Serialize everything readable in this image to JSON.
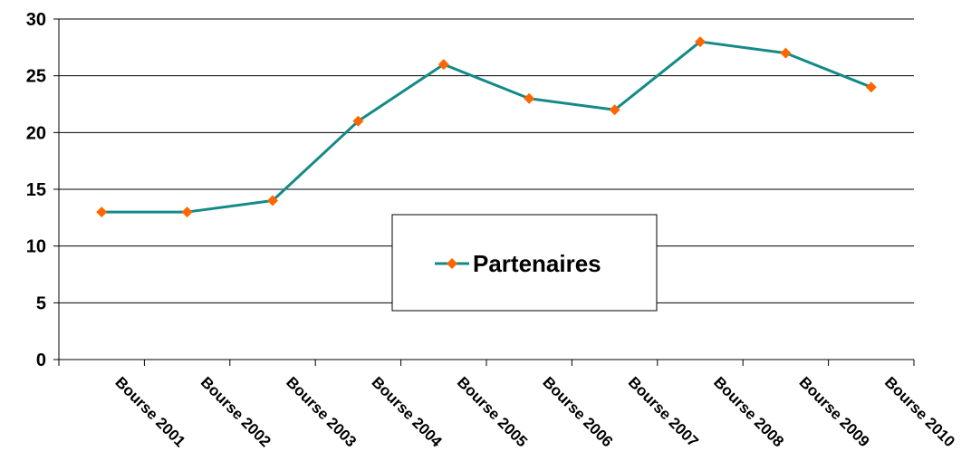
{
  "chart_data": {
    "type": "line",
    "categories": [
      "Bourse 2001",
      "Bourse 2002",
      "Bourse 2003",
      "Bourse 2004",
      "Bourse 2005",
      "Bourse 2006",
      "Bourse 2007",
      "Bourse 2008",
      "Bourse 2009",
      "Bourse 2010"
    ],
    "series": [
      {
        "name": "Partenaires",
        "values": [
          13,
          13,
          14,
          21,
          26,
          23,
          22,
          28,
          27,
          24
        ]
      }
    ],
    "ylim": [
      0,
      30
    ],
    "yticks": [
      0,
      5,
      10,
      15,
      20,
      25,
      30
    ],
    "grid": true,
    "legend_position": "center",
    "colors": {
      "line": "#148A87",
      "marker": "#FF6600",
      "grid": "#000000"
    }
  }
}
